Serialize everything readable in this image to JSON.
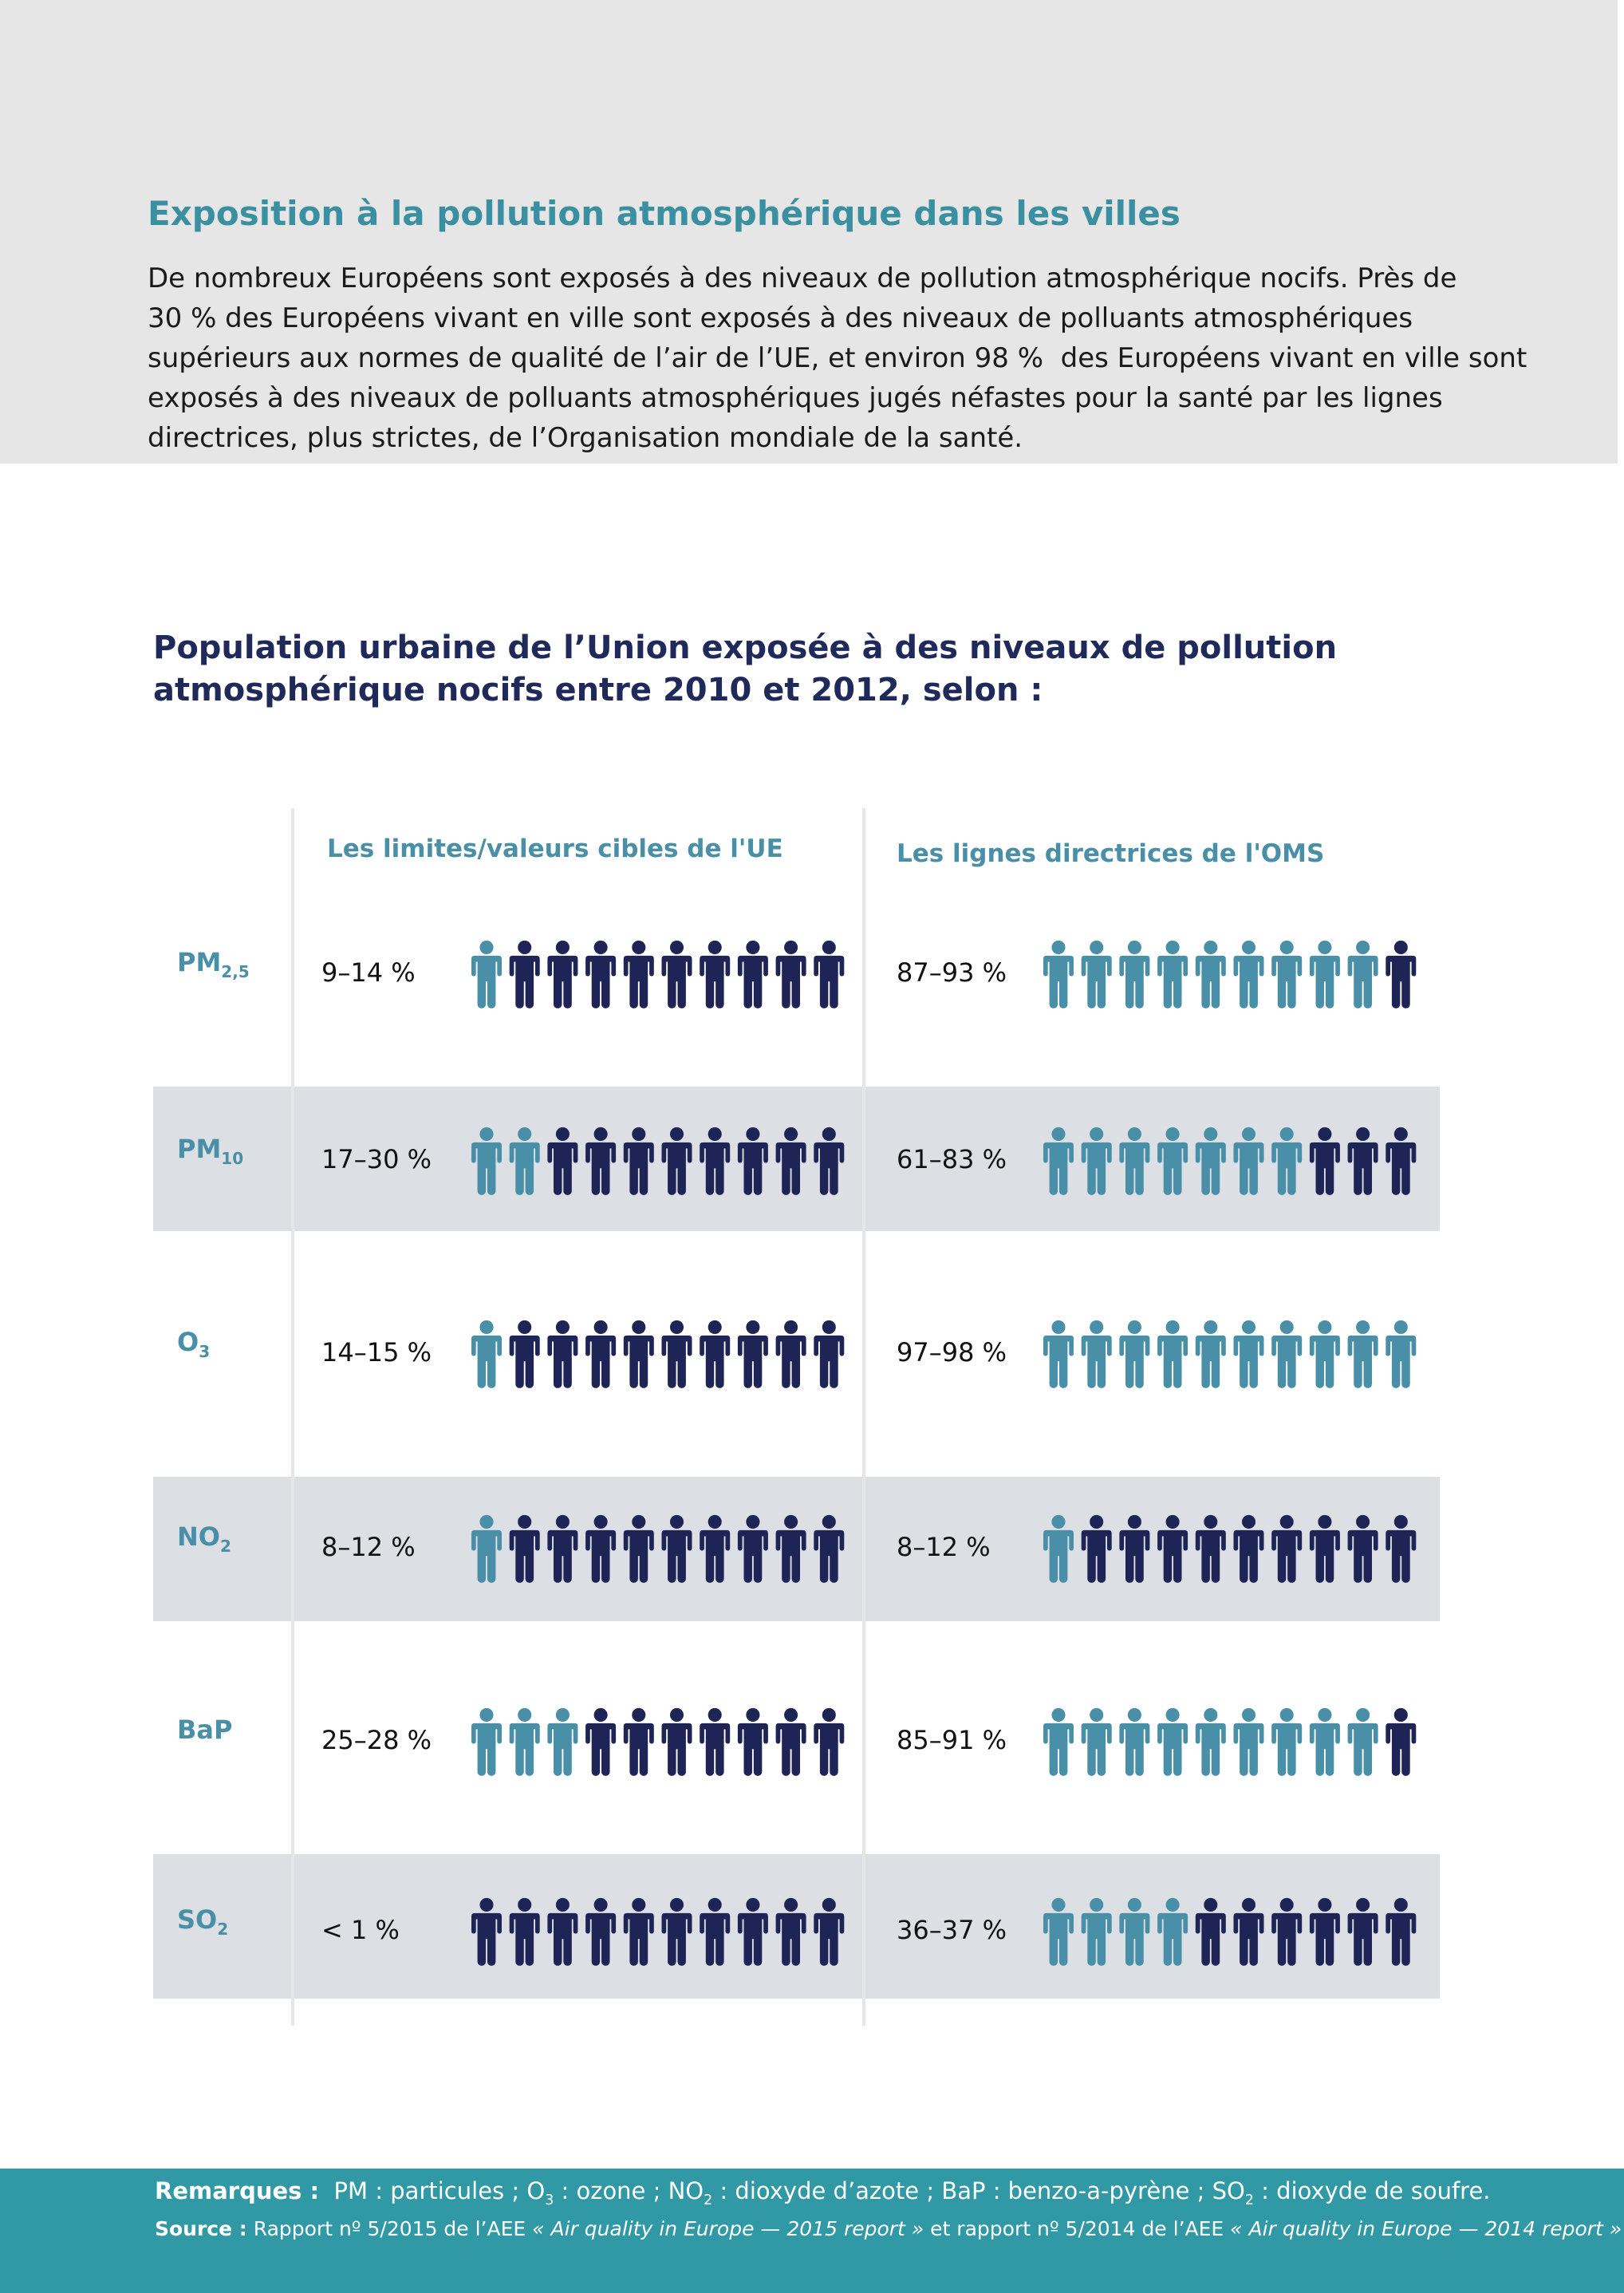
{
  "header": {
    "title": "Exposition à la pollution atmosphérique dans les villes",
    "paragraph": [
      "De nombreux Européens sont exposés à des niveaux de pollution atmosphérique nocifs. Près de",
      "30 % des Européens vivant en ville sont exposés à des niveaux de polluants atmosphériques",
      "supérieurs aux normes de qualité de l’air de l’UE, et environ 98 %  des Européens vivant en ville sont",
      "exposés à des niveaux de polluants atmosphériques jugés néfastes pour la santé par les lignes",
      "directrices, plus strictes, de l’Organisation mondiale de la santé."
    ]
  },
  "chart": {
    "title": [
      "Population urbaine de l’Union exposée à des niveaux de pollution",
      "atmosphérique nocifs entre 2010 et 2012, selon :"
    ],
    "columns": [
      "Les limites/valeurs cibles de l'UE",
      "Les lignes directrices de l'OMS"
    ],
    "icons_total": 10,
    "highlight_color": "#4a8fa8",
    "base_color": "#1f2456",
    "rows": [
      {
        "pollutant": "PM",
        "sub": "2,5",
        "eu": {
          "label": "9–14 %",
          "highlighted": 1
        },
        "who": {
          "label": "87–93 %",
          "highlighted": 9
        }
      },
      {
        "pollutant": "PM",
        "sub": "10",
        "eu": {
          "label": "17–30 %",
          "highlighted": 2
        },
        "who": {
          "label": "61–83 %",
          "highlighted": 7
        }
      },
      {
        "pollutant": "O",
        "sub": "3",
        "eu": {
          "label": "14–15 %",
          "highlighted": 1
        },
        "who": {
          "label": "97–98 %",
          "highlighted": 10
        }
      },
      {
        "pollutant": "NO",
        "sub": "2",
        "eu": {
          "label": "8–12 %",
          "highlighted": 1
        },
        "who": {
          "label": "8–12 %",
          "highlighted": 1
        }
      },
      {
        "pollutant": "BaP",
        "eu": {
          "label": "25–28 %",
          "highlighted": 3
        },
        "who": {
          "label": "85–91 %",
          "highlighted": 9
        }
      },
      {
        "pollutant": "SO",
        "sub": "2",
        "eu": {
          "label": "< 1 %",
          "highlighted": 0
        },
        "who": {
          "label": "36–37 %",
          "highlighted": 4
        }
      }
    ]
  },
  "footer": {
    "notes": [
      {
        "text": "Remarques :",
        "bold": true
      },
      {
        "text": "  PM : particules ; O"
      },
      {
        "text": "3",
        "sub": true
      },
      {
        "text": " : ozone ; NO"
      },
      {
        "text": "2",
        "sub": true
      },
      {
        "text": " : dioxyde d’azote ; BaP : benzo-a-pyrène ; SO"
      },
      {
        "text": "2",
        "sub": true
      },
      {
        "text": " : dioxyde de soufre."
      }
    ],
    "source": [
      {
        "text": "Source :",
        "bold": true
      },
      {
        "text": " Rapport nº 5/2015 de l’AEE "
      },
      {
        "text": "« Air quality in Europe — 2015 report »",
        "italic": true
      },
      {
        "text": " et rapport nº 5/2014 de l’AEE "
      },
      {
        "text": "« Air quality in Europe — 2014 report »",
        "italic": true
      }
    ]
  }
}
